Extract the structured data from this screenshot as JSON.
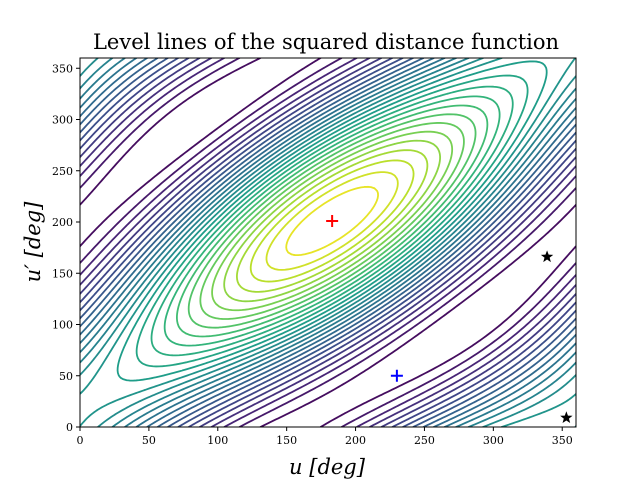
{
  "chart_data": {
    "type": "contour",
    "title": "Level lines of the squared distance function",
    "xlabel": "u [deg]",
    "ylabel": "u′ [deg]",
    "xlim": [
      0,
      360
    ],
    "ylim": [
      0,
      360
    ],
    "xticks": [
      0,
      50,
      100,
      150,
      200,
      250,
      300,
      350
    ],
    "yticks": [
      0,
      50,
      100,
      150,
      200,
      250,
      300,
      350
    ],
    "colormap": "viridis",
    "markers": [
      {
        "name": "red-plus",
        "shape": "plus",
        "color": "#ff0000",
        "x": 183,
        "y": 201
      },
      {
        "name": "blue-plus",
        "shape": "plus",
        "color": "#0000ff",
        "x": 230,
        "y": 50
      },
      {
        "name": "black-star-1",
        "shape": "star",
        "color": "#000000",
        "x": 339,
        "y": 166
      },
      {
        "name": "black-star-2",
        "shape": "star",
        "color": "#000000",
        "x": 353,
        "y": 9
      }
    ],
    "grid": false,
    "legend": "none"
  }
}
